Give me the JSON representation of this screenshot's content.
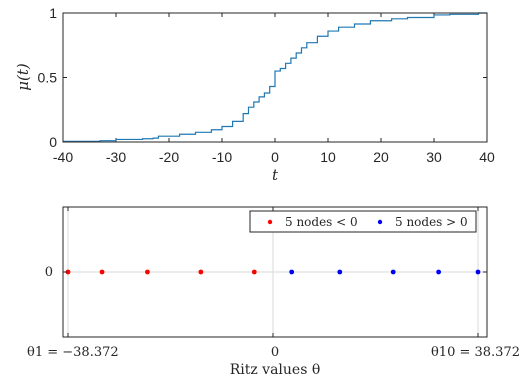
{
  "chart_data": [
    {
      "type": "line",
      "xlabel": "t",
      "ylabel": "μ(t)",
      "xlim": [
        -40,
        40
      ],
      "ylim": [
        0,
        1
      ],
      "xticks": [
        -40,
        -30,
        -20,
        -10,
        0,
        10,
        20,
        30,
        40
      ],
      "xtick_labels": [
        "-40",
        "-30",
        "-20",
        "-10",
        "0",
        "10",
        "20",
        "30",
        "40"
      ],
      "yticks": [
        0,
        0.5,
        1
      ],
      "ytick_labels": [
        "0",
        "0.5",
        "1"
      ],
      "grid": false,
      "color": "#1f77b4",
      "series": [
        {
          "x": [
            -38.4,
            -33,
            -30,
            -25,
            -23,
            -22,
            -18,
            -15,
            -12,
            -10,
            -8,
            -6,
            -5,
            -4,
            -3,
            -2,
            -1,
            0,
            0,
            1,
            2,
            3,
            4,
            5,
            6,
            8,
            10,
            12,
            15,
            18,
            22,
            25,
            30,
            33,
            38.4
          ],
          "y": [
            0.005,
            0.01,
            0.02,
            0.025,
            0.03,
            0.045,
            0.06,
            0.075,
            0.095,
            0.12,
            0.16,
            0.22,
            0.27,
            0.31,
            0.35,
            0.38,
            0.43,
            0.455,
            0.55,
            0.57,
            0.61,
            0.65,
            0.69,
            0.73,
            0.77,
            0.82,
            0.86,
            0.89,
            0.915,
            0.94,
            0.955,
            0.965,
            0.985,
            0.99,
            1.0
          ]
        }
      ]
    },
    {
      "type": "scatter",
      "xlabel": "Ritz values θ",
      "xlim": [
        -38.372,
        38.372
      ],
      "ylim": [
        -1,
        1
      ],
      "yticks": [
        0
      ],
      "ytick_labels": [
        "0"
      ],
      "xtick_labels": [
        "θ1 = −38.372",
        "0",
        "θ10 = 38.372"
      ],
      "legend_placement": "top-right",
      "series": [
        {
          "name": "5 nodes < 0",
          "color": "#ff0000",
          "x": [
            -38.372,
            -32.0,
            -23.5,
            -13.5,
            -3.5
          ],
          "y": [
            0,
            0,
            0,
            0,
            0
          ]
        },
        {
          "name": "5 nodes > 0",
          "color": "#0000ff",
          "x": [
            3.5,
            12.5,
            22.5,
            31.0,
            38.372
          ],
          "y": [
            0,
            0,
            0,
            0,
            0
          ]
        }
      ]
    }
  ]
}
